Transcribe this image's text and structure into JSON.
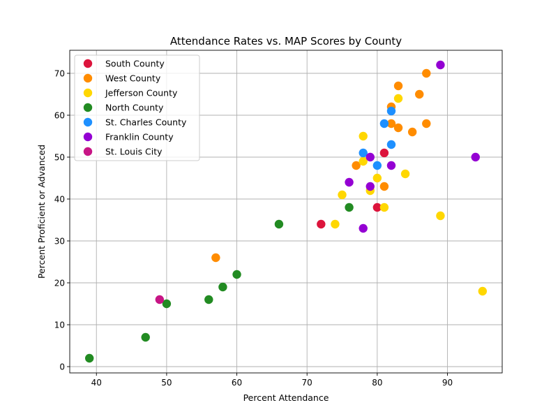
{
  "chart_data": {
    "type": "scatter",
    "title": "Attendance Rates vs. MAP Scores by County",
    "xlabel": "Percent Attendance",
    "ylabel": "Percent Proficient or Advanced",
    "xlim": [
      36.2,
      97.8
    ],
    "ylim": [
      -1.5,
      75.5
    ],
    "xticks": [
      40,
      50,
      60,
      70,
      80,
      90
    ],
    "yticks": [
      0,
      10,
      20,
      30,
      40,
      50,
      60,
      70
    ],
    "grid": true,
    "legend_position": "upper-left",
    "series": [
      {
        "name": "South County",
        "color": "#dc143c",
        "points": [
          [
            72,
            34
          ],
          [
            80,
            38
          ],
          [
            81,
            51
          ]
        ]
      },
      {
        "name": "West County",
        "color": "#ff8c00",
        "points": [
          [
            57,
            26
          ],
          [
            77,
            48
          ],
          [
            81,
            43
          ],
          [
            82,
            62
          ],
          [
            82,
            58
          ],
          [
            83,
            67
          ],
          [
            83,
            57
          ],
          [
            85,
            56
          ],
          [
            86,
            65
          ],
          [
            87,
            70
          ],
          [
            87,
            58
          ]
        ]
      },
      {
        "name": "Jefferson County",
        "color": "#ffd700",
        "points": [
          [
            74,
            34
          ],
          [
            75,
            41
          ],
          [
            78,
            55
          ],
          [
            78,
            49
          ],
          [
            79,
            42
          ],
          [
            80,
            45
          ],
          [
            81,
            38
          ],
          [
            83,
            64
          ],
          [
            84,
            46
          ],
          [
            89,
            36
          ],
          [
            95,
            18
          ]
        ]
      },
      {
        "name": "North County",
        "color": "#228b22",
        "points": [
          [
            39,
            2
          ],
          [
            47,
            7
          ],
          [
            50,
            15
          ],
          [
            56,
            16
          ],
          [
            58,
            19
          ],
          [
            60,
            22
          ],
          [
            66,
            34
          ],
          [
            76,
            38
          ]
        ]
      },
      {
        "name": "St. Charles County",
        "color": "#1e90ff",
        "points": [
          [
            78,
            51
          ],
          [
            80,
            48
          ],
          [
            81,
            58
          ],
          [
            82,
            61
          ],
          [
            82,
            53
          ]
        ]
      },
      {
        "name": "Franklin County",
        "color": "#9400d3",
        "points": [
          [
            76,
            44
          ],
          [
            78,
            33
          ],
          [
            79,
            50
          ],
          [
            79,
            43
          ],
          [
            82,
            48
          ],
          [
            89,
            72
          ],
          [
            94,
            50
          ]
        ]
      },
      {
        "name": "St. Louis City",
        "color": "#c71585",
        "points": [
          [
            49,
            16
          ]
        ]
      }
    ]
  }
}
